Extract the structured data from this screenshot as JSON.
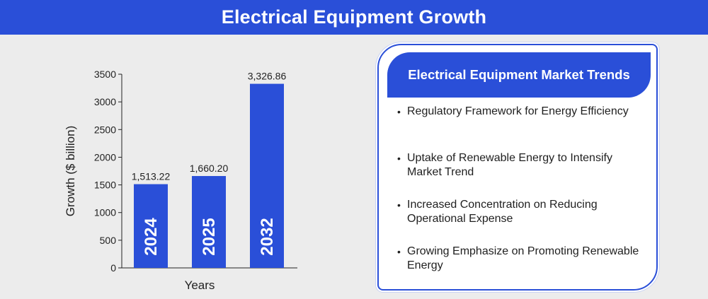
{
  "header": {
    "title": "Electrical Equipment Growth"
  },
  "chart_data": {
    "type": "bar",
    "categories": [
      "2024",
      "2025",
      "2032"
    ],
    "values": [
      1513.22,
      1660.2,
      3326.86
    ],
    "value_labels": [
      "1,513.22",
      "1,660.20",
      "3,326.86"
    ],
    "xlabel": "Years",
    "ylabel": "Growth ($ billion)",
    "ylim": [
      0,
      3500
    ],
    "yticks": [
      0,
      500,
      1000,
      1500,
      2000,
      2500,
      3000,
      3500
    ],
    "grid": false,
    "legend": "none",
    "bar_color": "#2a4fd8"
  },
  "trends": {
    "title": "Electrical Equipment Market Trends",
    "items": [
      "Regulatory Framework for Energy Efficiency",
      "Uptake of Renewable Energy to Intensify Market Trend",
      "Increased Concentration on Reducing Operational Expense",
      "Growing Emphasize on Promoting Renewable Energy"
    ]
  },
  "colors": {
    "accent": "#2a4fd8",
    "background": "#ececec",
    "card": "#ffffff"
  }
}
